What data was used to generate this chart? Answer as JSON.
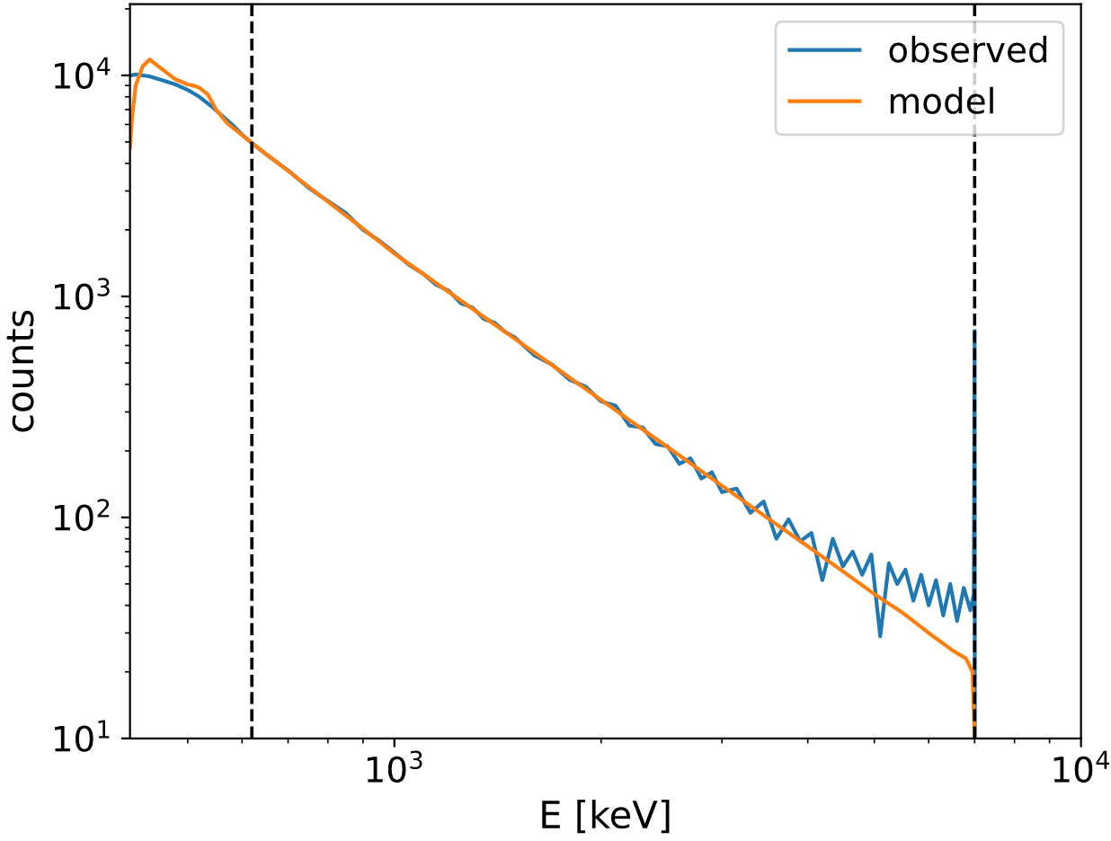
{
  "chart_data": {
    "type": "line",
    "xlabel": "E [keV]",
    "ylabel": "counts",
    "log": "xy",
    "xlim": [
      412,
      10000
    ],
    "ylim": [
      10,
      21000
    ],
    "xticks": [
      {
        "value": 1000,
        "label": "10$^{3}$"
      },
      {
        "value": 10000,
        "label": "10$^{4}$"
      }
    ],
    "yticks": [
      {
        "value": 10,
        "label": "10$^{1}$"
      },
      {
        "value": 100,
        "label": "10$^{2}$"
      },
      {
        "value": 1000,
        "label": "10$^{3}$"
      },
      {
        "value": 10000,
        "label": "10$^{4}$"
      }
    ],
    "grid": false,
    "legend": "top right",
    "marker": "none",
    "line_style": "solid",
    "ref_lines": [
      {
        "axis": "x",
        "value": 620,
        "label": null,
        "color": "#000000",
        "line_style": "dashed"
      },
      {
        "axis": "x",
        "value": 7000,
        "label": null,
        "color": "#000000",
        "line_style": "dashed"
      }
    ],
    "series": [
      {
        "name": "observed",
        "color": "#1f77b4",
        "x": [
          412,
          420,
          440,
          460,
          480,
          500,
          520,
          540,
          560,
          580,
          600,
          617,
          650,
          700,
          750,
          800,
          850,
          900,
          950,
          1000,
          1050,
          1100,
          1150,
          1200,
          1250,
          1300,
          1350,
          1400,
          1450,
          1500,
          1600,
          1700,
          1800,
          1900,
          2000,
          2100,
          2200,
          2300,
          2400,
          2500,
          2600,
          2700,
          2800,
          2900,
          3000,
          3150,
          3300,
          3450,
          3600,
          3750,
          3900,
          4050,
          4200,
          4350,
          4500,
          4650,
          4800,
          4950,
          5100,
          5250,
          5400,
          5550,
          5700,
          5850,
          6000,
          6150,
          6300,
          6450,
          6600,
          6750,
          6900,
          6980,
          7000,
          7005
        ],
        "values": [
          10000,
          10100,
          9900,
          9500,
          9100,
          8600,
          8000,
          7300,
          6600,
          6000,
          5400,
          5000,
          4400,
          3720,
          3100,
          2700,
          2380,
          2000,
          1790,
          1580,
          1390,
          1270,
          1130,
          1060,
          930,
          890,
          790,
          760,
          690,
          650,
          540,
          490,
          420,
          390,
          335,
          320,
          260,
          255,
          215,
          210,
          175,
          185,
          150,
          160,
          130,
          135,
          105,
          118,
          80,
          98,
          78,
          85,
          52,
          80,
          60,
          70,
          55,
          68,
          29,
          62,
          50,
          58,
          42,
          55,
          40,
          52,
          36,
          50,
          34,
          48,
          38,
          45,
          700,
          10
        ]
      },
      {
        "name": "model",
        "color": "#ff7f0e",
        "x": [
          412,
          415,
          420,
          430,
          440,
          460,
          480,
          500,
          510,
          520,
          535,
          550,
          570,
          590,
          617,
          650,
          700,
          750,
          800,
          900,
          1000,
          1100,
          1200,
          1300,
          1400,
          1500,
          1700,
          2000,
          2300,
          2600,
          3000,
          3500,
          4000,
          4500,
          5000,
          5500,
          6000,
          6500,
          6800,
          6950,
          7000
        ],
        "values": [
          4700,
          6500,
          9000,
          11000,
          11800,
          10600,
          9600,
          9100,
          9000,
          8800,
          8200,
          7000,
          6100,
          5600,
          5000,
          4415,
          3700,
          3133,
          2685,
          2025,
          1563,
          1268,
          1047,
          878,
          746,
          641,
          487,
          340,
          250,
          191,
          139,
          99,
          74,
          57,
          45,
          37,
          30,
          25,
          23,
          20,
          10
        ]
      }
    ]
  }
}
